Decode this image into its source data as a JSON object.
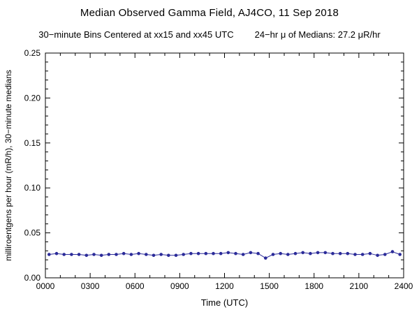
{
  "page": {
    "background": "#ffffff"
  },
  "chart_data": {
    "type": "line",
    "title": "Median Observed Gamma Field, AJ4CO, 11 Sep 2018",
    "subtitle_left": "30−minute Bins Centered at xx15 and xx45 UTC",
    "subtitle_right": "24−hr μ of Medians: 27.2 μR/hr",
    "xlabel": "Time (UTC)",
    "ylabel": "milliroentgens per hour (mR/h), 30−minute medians",
    "xlim": [
      0,
      1440
    ],
    "ylim": [
      0,
      0.25
    ],
    "x_major_ticks": [
      {
        "value": 0,
        "label": "0000"
      },
      {
        "value": 180,
        "label": "0300"
      },
      {
        "value": 360,
        "label": "0600"
      },
      {
        "value": 540,
        "label": "0900"
      },
      {
        "value": 720,
        "label": "1200"
      },
      {
        "value": 900,
        "label": "1500"
      },
      {
        "value": 1080,
        "label": "1800"
      },
      {
        "value": 1260,
        "label": "2100"
      },
      {
        "value": 1440,
        "label": "2400"
      }
    ],
    "x_minor_step": 60,
    "y_major_ticks": [
      {
        "value": 0.0,
        "label": "0.00"
      },
      {
        "value": 0.05,
        "label": "0.05"
      },
      {
        "value": 0.1,
        "label": "0.10"
      },
      {
        "value": 0.15,
        "label": "0.15"
      },
      {
        "value": 0.2,
        "label": "0.20"
      },
      {
        "value": 0.25,
        "label": "0.25"
      }
    ],
    "y_minor_step": 0.01,
    "line_color": "#2b2b99",
    "frame_color": "#000000",
    "x_minutes": [
      15,
      45,
      75,
      105,
      135,
      165,
      195,
      225,
      255,
      285,
      315,
      345,
      375,
      405,
      435,
      465,
      495,
      525,
      555,
      585,
      615,
      645,
      675,
      705,
      735,
      765,
      795,
      825,
      855,
      885,
      915,
      945,
      975,
      1005,
      1035,
      1065,
      1095,
      1125,
      1155,
      1185,
      1215,
      1245,
      1275,
      1305,
      1335,
      1365,
      1395,
      1425
    ],
    "values": [
      0.026,
      0.027,
      0.026,
      0.026,
      0.026,
      0.025,
      0.026,
      0.025,
      0.026,
      0.026,
      0.027,
      0.026,
      0.027,
      0.026,
      0.025,
      0.026,
      0.025,
      0.025,
      0.026,
      0.027,
      0.027,
      0.027,
      0.027,
      0.027,
      0.028,
      0.027,
      0.026,
      0.028,
      0.027,
      0.022,
      0.026,
      0.027,
      0.026,
      0.027,
      0.028,
      0.027,
      0.028,
      0.028,
      0.027,
      0.027,
      0.027,
      0.026,
      0.026,
      0.027,
      0.025,
      0.026,
      0.029,
      0.026
    ]
  }
}
